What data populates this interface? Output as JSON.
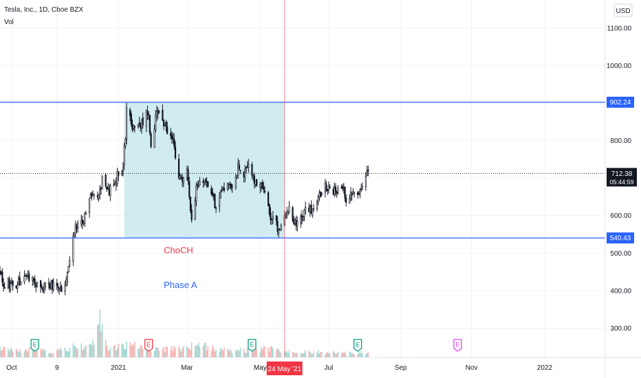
{
  "header": {
    "title": "Tesla, Inc., 1D, Cboe BZX",
    "indicator": "Vol",
    "currency": "USD"
  },
  "chart_data": {
    "type": "candlestick",
    "y_ticks": [
      300,
      400,
      500,
      600,
      700,
      800,
      900,
      1000,
      1100
    ],
    "y_tick_labels": [
      "300.00",
      "400.00",
      "500.00",
      "600.00",
      "700.00",
      "800.00",
      "900.00",
      "1000.00",
      "1100.00"
    ],
    "ylim": [
      215,
      1190
    ],
    "x_tick_labels": [
      {
        "label": "Oct",
        "date": "2020-10-01"
      },
      {
        "label": "9",
        "date": "2020-11-09"
      },
      {
        "label": "2021",
        "date": "2021-01-01"
      },
      {
        "label": "Mar",
        "date": "2021-03-01"
      },
      {
        "label": "May",
        "date": "2021-05-03"
      },
      {
        "label": "Jul",
        "date": "2021-07-01"
      },
      {
        "label": "Sep",
        "date": "2021-09-01"
      },
      {
        "label": "Nov",
        "date": "2021-11-01"
      },
      {
        "label": "2022",
        "date": "2022-01-03"
      }
    ],
    "levels": [
      {
        "price": 902.24,
        "label": "902.24",
        "color": "#2962ff"
      },
      {
        "price": 540.43,
        "label": "540.43",
        "color": "#2962ff"
      }
    ],
    "last_price": {
      "price": 712.38,
      "label": "712.38",
      "countdown": "05:44:59"
    },
    "crosshair": {
      "date": "2021-05-24",
      "label": "24 May '21"
    },
    "zone": {
      "start": "2021-01-06",
      "end": "2021-05-24",
      "low": 540.43,
      "high": 902.24,
      "color": "#b2dfe6"
    },
    "annotations": [
      {
        "text": "ChoCH",
        "color": "#f23645",
        "date": "2021-02-09",
        "price": 500
      },
      {
        "text": "Phase A",
        "color": "#2962ff",
        "date": "2021-02-09",
        "price": 407
      }
    ],
    "earnings": [
      {
        "date": "2020-10-21",
        "color": "#089981"
      },
      {
        "date": "2021-01-27",
        "color": "#f23645"
      },
      {
        "date": "2021-04-26",
        "color": "#089981"
      },
      {
        "date": "2021-07-26",
        "color": "#089981"
      },
      {
        "date": "2021-10-20",
        "color": "#e040fb"
      }
    ],
    "close_keypoints": [
      [
        "2020-09-21",
        449
      ],
      [
        "2020-09-25",
        407
      ],
      [
        "2020-09-28",
        421
      ],
      [
        "2020-10-02",
        415
      ],
      [
        "2020-10-07",
        423
      ],
      [
        "2020-10-12",
        442
      ],
      [
        "2020-10-16",
        439
      ],
      [
        "2020-10-21",
        422
      ],
      [
        "2020-10-28",
        406
      ],
      [
        "2020-11-03",
        420
      ],
      [
        "2020-11-10",
        410
      ],
      [
        "2020-11-16",
        408
      ],
      [
        "2020-11-17",
        441
      ],
      [
        "2020-11-20",
        489
      ],
      [
        "2020-11-25",
        574
      ],
      [
        "2020-12-01",
        584
      ],
      [
        "2020-12-08",
        649
      ],
      [
        "2020-12-14",
        639
      ],
      [
        "2020-12-18",
        695
      ],
      [
        "2020-12-24",
        661
      ],
      [
        "2020-12-31",
        705
      ],
      [
        "2021-01-05",
        735
      ],
      [
        "2021-01-07",
        816
      ],
      [
        "2021-01-08",
        880
      ],
      [
        "2021-01-12",
        849
      ],
      [
        "2021-01-15",
        826
      ],
      [
        "2021-01-22",
        846
      ],
      [
        "2021-01-25",
        880
      ],
      [
        "2021-01-27",
        865
      ],
      [
        "2021-01-29",
        793
      ],
      [
        "2021-02-03",
        872
      ],
      [
        "2021-02-08",
        863
      ],
      [
        "2021-02-12",
        816
      ],
      [
        "2021-02-17",
        798
      ],
      [
        "2021-02-22",
        714
      ],
      [
        "2021-02-25",
        682
      ],
      [
        "2021-03-01",
        718
      ],
      [
        "2021-03-04",
        621
      ],
      [
        "2021-03-05",
        597
      ],
      [
        "2021-03-09",
        673
      ],
      [
        "2021-03-12",
        693
      ],
      [
        "2021-03-17",
        701
      ],
      [
        "2021-03-22",
        670
      ],
      [
        "2021-03-26",
        618
      ],
      [
        "2021-03-31",
        667
      ],
      [
        "2021-04-06",
        690
      ],
      [
        "2021-04-09",
        677
      ],
      [
        "2021-04-14",
        732
      ],
      [
        "2021-04-19",
        714
      ],
      [
        "2021-04-23",
        729
      ],
      [
        "2021-04-28",
        694
      ],
      [
        "2021-05-03",
        685
      ],
      [
        "2021-05-06",
        663
      ],
      [
        "2021-05-12",
        589
      ],
      [
        "2021-05-14",
        589
      ],
      [
        "2021-05-19",
        563
      ],
      [
        "2021-05-24",
        606
      ],
      [
        "2021-05-28",
        625
      ],
      [
        "2021-06-03",
        572
      ],
      [
        "2021-06-08",
        603
      ],
      [
        "2021-06-14",
        617
      ],
      [
        "2021-06-17",
        616
      ],
      [
        "2021-06-23",
        657
      ],
      [
        "2021-06-25",
        671
      ],
      [
        "2021-07-01",
        677
      ],
      [
        "2021-07-07",
        658
      ],
      [
        "2021-07-12",
        685
      ],
      [
        "2021-07-16",
        644
      ],
      [
        "2021-07-20",
        656
      ],
      [
        "2021-07-26",
        657
      ],
      [
        "2021-07-29",
        677
      ],
      [
        "2021-08-02",
        709
      ],
      [
        "2021-08-04",
        712
      ]
    ],
    "volume_keypoints": [
      [
        "2020-09-21",
        50
      ],
      [
        "2020-10-05",
        35
      ],
      [
        "2020-10-21",
        40
      ],
      [
        "2020-11-06",
        28
      ],
      [
        "2020-11-17",
        50
      ],
      [
        "2020-11-24",
        70
      ],
      [
        "2020-12-08",
        55
      ],
      [
        "2020-12-18",
        220
      ],
      [
        "2020-12-23",
        45
      ],
      [
        "2021-01-08",
        70
      ],
      [
        "2021-01-27",
        45
      ],
      [
        "2021-02-22",
        45
      ],
      [
        "2021-03-05",
        60
      ],
      [
        "2021-03-09",
        70
      ],
      [
        "2021-04-06",
        35
      ],
      [
        "2021-05-12",
        45
      ],
      [
        "2021-06-08",
        30
      ],
      [
        "2021-07-12",
        25
      ],
      [
        "2021-08-04",
        25
      ]
    ]
  }
}
